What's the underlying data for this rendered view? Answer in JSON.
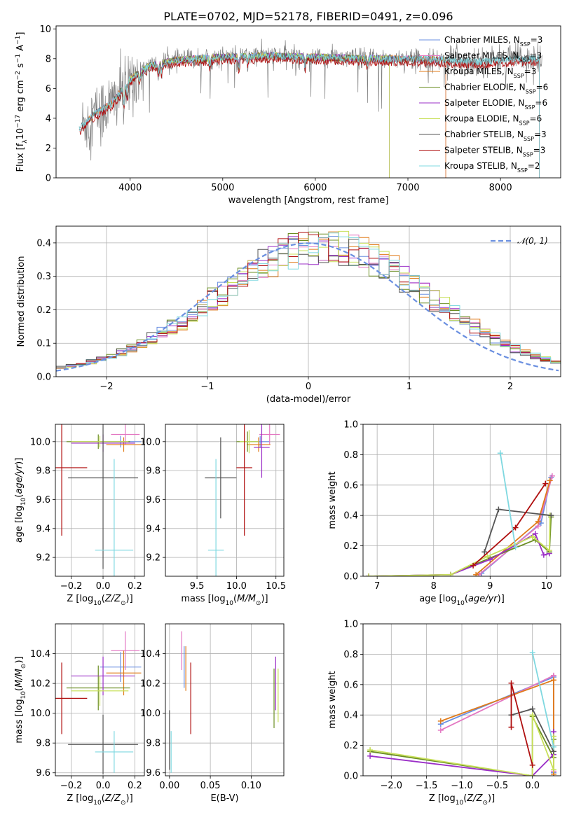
{
  "title": "PLATE=0702, MJD=52178, FIBERID=0491, z=0.096",
  "colors": {
    "chabrier_miles": "#6a8fe0",
    "salpeter_miles": "#e377c2",
    "kroupa_miles": "#e07b1a",
    "chabrier_elodie": "#6b8e23",
    "salpeter_elodie": "#9b2fc7",
    "kroupa_elodie": "#c8e05a",
    "chabrier_stelib": "#555555",
    "salpeter_stelib": "#b01010",
    "kroupa_stelib": "#7fd8e0",
    "gaussian": "#6a8fe0",
    "data_spectrum": "#808080"
  },
  "chart_data": [
    {
      "id": "spectrum",
      "type": "line",
      "xlabel": "wavelength [Angstrom, rest frame]",
      "ylabel": "Flux [f_λ10^-17 erg cm^-2 s^-1 A^-1]",
      "xlim": [
        3200,
        8650
      ],
      "ylim": [
        0,
        10.2
      ],
      "xticks": [
        4000,
        5000,
        6000,
        7000,
        8000
      ],
      "yticks": [
        0,
        2,
        4,
        6,
        8,
        10
      ],
      "legend": "top-right",
      "series": [
        {
          "name": "Chabrier MILES, N_SSP=3"
        },
        {
          "name": "Salpeter MILES, N_SSP=3"
        },
        {
          "name": "Kroupa MILES, N_SSP=3"
        },
        {
          "name": "Chabrier ELODIE, N_SSP=6"
        },
        {
          "name": "Salpeter ELODIE, N_SSP=6"
        },
        {
          "name": "Kroupa ELODIE, N_SSP=6"
        },
        {
          "name": "Chabrier STELIB, N_SSP=3"
        },
        {
          "name": "Salpeter STELIB, N_SSP=3"
        },
        {
          "name": "Kroupa STELIB, N_SSP=2"
        }
      ],
      "continuum": {
        "x": [
          3450,
          3600,
          3800,
          4000,
          4200,
          4500,
          5000,
          5500,
          6000,
          6500,
          7000,
          7400,
          7800,
          8200,
          8450
        ],
        "y": [
          3.3,
          4.2,
          5.0,
          6.6,
          7.5,
          7.9,
          8.1,
          8.2,
          8.1,
          8.0,
          8.0,
          7.9,
          7.8,
          8.0,
          8.0
        ]
      }
    },
    {
      "id": "residuals",
      "type": "line",
      "xlabel": "(data-model)/error",
      "ylabel": "Normed distribution",
      "xlim": [
        -2.5,
        2.5
      ],
      "ylim": [
        0,
        0.45
      ],
      "xticks": [
        -2,
        -1,
        0,
        1,
        2
      ],
      "yticks": [
        0.0,
        0.1,
        0.2,
        0.3,
        0.4
      ],
      "legend": "top-right",
      "gaussian_label": "𝒩(0, 1)"
    },
    {
      "id": "age_vs_Z",
      "type": "scatter",
      "xlabel": "Z [log10(Z/Z⊙)]",
      "ylabel": "age  [log10(age/yr)]",
      "xlim": [
        -0.3,
        0.26
      ],
      "ylim": [
        9.07,
        10.12
      ],
      "xticks": [
        -0.2,
        0.0,
        0.2
      ],
      "yticks": [
        9.2,
        9.4,
        9.6,
        9.8,
        10.0
      ],
      "points": [
        {
          "k": "chabrier_miles",
          "x": 0.11,
          "y": 10.0,
          "xe": 0.13,
          "ye": 0.04
        },
        {
          "k": "salpeter_miles",
          "x": 0.14,
          "y": 10.05,
          "xe": 0.09,
          "ye": 0.07
        },
        {
          "k": "kroupa_miles",
          "x": 0.13,
          "y": 9.98,
          "xe": 0.11,
          "ye": 0.05
        },
        {
          "k": "chabrier_elodie",
          "x": -0.03,
          "y": 10.0,
          "xe": 0.2,
          "ye": 0.05
        },
        {
          "k": "salpeter_elodie",
          "x": 0.0,
          "y": 9.99,
          "xe": 0.2,
          "ye": 0.06
        },
        {
          "k": "kroupa_elodie",
          "x": -0.02,
          "y": 10.0,
          "xe": 0.18,
          "ye": 0.04
        },
        {
          "k": "chabrier_stelib",
          "x": 0.0,
          "y": 9.75,
          "xe": 0.22,
          "ye": 0.63
        },
        {
          "k": "salpeter_stelib",
          "x": -0.26,
          "y": 9.82,
          "xe": 0.16,
          "ye": 0.47
        },
        {
          "k": "kroupa_stelib",
          "x": 0.07,
          "y": 9.25,
          "xe": 0.12,
          "ye": 0.63
        }
      ]
    },
    {
      "id": "age_vs_mass",
      "type": "scatter",
      "xlabel": "mass [log10(M/M⊙)]",
      "ylabel": "",
      "xlim": [
        9.1,
        10.6
      ],
      "ylim": [
        9.07,
        10.12
      ],
      "xticks": [
        9.5,
        10.0,
        10.5
      ],
      "yticks": [
        9.2,
        9.4,
        9.6,
        9.8,
        10.0
      ],
      "points": [
        {
          "k": "chabrier_miles",
          "x": 10.3,
          "y": 10.0,
          "xe": 0.12,
          "ye": 0.04
        },
        {
          "k": "salpeter_miles",
          "x": 10.42,
          "y": 10.05,
          "xe": 0.13,
          "ye": 0.07
        },
        {
          "k": "kroupa_miles",
          "x": 10.28,
          "y": 9.98,
          "xe": 0.15,
          "ye": 0.05
        },
        {
          "k": "chabrier_elodie",
          "x": 10.14,
          "y": 10.0,
          "xe": 0.14,
          "ye": 0.07
        },
        {
          "k": "salpeter_elodie",
          "x": 10.32,
          "y": 9.96,
          "xe": 0.1,
          "ye": 0.21
        },
        {
          "k": "kroupa_elodie",
          "x": 10.16,
          "y": 10.0,
          "xe": 0.12,
          "ye": 0.08
        },
        {
          "k": "chabrier_stelib",
          "x": 9.8,
          "y": 9.75,
          "xe": 0.2,
          "ye": 0.28
        },
        {
          "k": "salpeter_stelib",
          "x": 10.1,
          "y": 9.82,
          "xe": 0.1,
          "ye": 0.47
        },
        {
          "k": "kroupa_stelib",
          "x": 9.74,
          "y": 9.25,
          "xe": 0.1,
          "ye": 0.63
        }
      ]
    },
    {
      "id": "weight_vs_age",
      "type": "line",
      "xlabel": "age  [log10(age/yr)]",
      "ylabel": "mass weight",
      "xlim": [
        6.75,
        10.25
      ],
      "ylim": [
        0,
        1.0
      ],
      "xticks": [
        7,
        8,
        9,
        10
      ],
      "yticks": [
        0.0,
        0.2,
        0.4,
        0.6,
        0.8,
        1.0
      ],
      "series": [
        {
          "k": "chabrier_miles",
          "x": [
            8.85,
            9.9,
            10.08
          ],
          "y": [
            0.02,
            0.35,
            0.65
          ]
        },
        {
          "k": "salpeter_miles",
          "x": [
            8.8,
            9.85,
            10.1
          ],
          "y": [
            0.01,
            0.33,
            0.66
          ]
        },
        {
          "k": "kroupa_miles",
          "x": [
            8.75,
            9.85,
            10.06
          ],
          "y": [
            0.01,
            0.36,
            0.63
          ]
        },
        {
          "k": "chabrier_elodie",
          "x": [
            6.85,
            8.3,
            9.0,
            9.8,
            10.05,
            10.08
          ],
          "y": [
            0.0,
            0.01,
            0.12,
            0.24,
            0.16,
            0.39
          ]
        },
        {
          "k": "salpeter_elodie",
          "x": [
            6.85,
            8.3,
            9.0,
            9.8,
            9.95,
            10.05
          ],
          "y": [
            0.0,
            0.01,
            0.11,
            0.28,
            0.14,
            0.15
          ]
        },
        {
          "k": "kroupa_elodie",
          "x": [
            6.85,
            8.3,
            8.95,
            9.75,
            10.05,
            10.06
          ],
          "y": [
            0.0,
            0.01,
            0.13,
            0.26,
            0.17,
            0.4
          ]
        },
        {
          "k": "chabrier_stelib",
          "x": [
            8.9,
            9.15,
            10.08
          ],
          "y": [
            0.16,
            0.44,
            0.4
          ]
        },
        {
          "k": "salpeter_stelib",
          "x": [
            8.7,
            9.45,
            9.98
          ],
          "y": [
            0.07,
            0.32,
            0.61
          ]
        },
        {
          "k": "kroupa_stelib",
          "x": [
            9.18,
            9.45
          ],
          "y": [
            0.81,
            0.19
          ]
        }
      ]
    },
    {
      "id": "mass_vs_Z",
      "type": "scatter",
      "xlabel": "Z [log10(Z/Z⊙)]",
      "ylabel": "mass [log10(M/M⊙)]",
      "xlim": [
        -0.3,
        0.26
      ],
      "ylim": [
        9.58,
        10.6
      ],
      "xticks": [
        -0.2,
        0.0,
        0.2
      ],
      "yticks": [
        9.6,
        9.8,
        10.0,
        10.2,
        10.4
      ],
      "points": [
        {
          "k": "chabrier_miles",
          "x": 0.11,
          "y": 10.31,
          "xe": 0.13,
          "ye": 0.1
        },
        {
          "k": "salpeter_miles",
          "x": 0.14,
          "y": 10.42,
          "xe": 0.09,
          "ye": 0.13
        },
        {
          "k": "kroupa_miles",
          "x": 0.13,
          "y": 10.27,
          "xe": 0.11,
          "ye": 0.15
        },
        {
          "k": "chabrier_elodie",
          "x": -0.03,
          "y": 10.17,
          "xe": 0.2,
          "ye": 0.15
        },
        {
          "k": "salpeter_elodie",
          "x": 0.0,
          "y": 10.25,
          "xe": 0.2,
          "ye": 0.13
        },
        {
          "k": "kroupa_elodie",
          "x": -0.02,
          "y": 10.15,
          "xe": 0.18,
          "ye": 0.1
        },
        {
          "k": "chabrier_stelib",
          "x": 0.0,
          "y": 9.79,
          "xe": 0.22,
          "ye": 0.2
        },
        {
          "k": "salpeter_stelib",
          "x": -0.26,
          "y": 10.1,
          "xe": 0.16,
          "ye": 0.24
        },
        {
          "k": "kroupa_stelib",
          "x": 0.07,
          "y": 9.74,
          "xe": 0.12,
          "ye": 0.14
        }
      ]
    },
    {
      "id": "mass_vs_EBV",
      "type": "scatter",
      "xlabel": "E(B-V)",
      "ylabel": "",
      "xlim": [
        -0.005,
        0.14
      ],
      "ylim": [
        9.58,
        10.6
      ],
      "xticks": [
        0.0,
        0.05,
        0.1
      ],
      "yticks": [
        9.6,
        9.8,
        10.0,
        10.2,
        10.4
      ],
      "points": [
        {
          "k": "chabrier_miles",
          "x": 0.018,
          "y": 10.31,
          "xe": 0,
          "ye": 0.14
        },
        {
          "k": "salpeter_miles",
          "x": 0.015,
          "y": 10.42,
          "xe": 0,
          "ye": 0.13
        },
        {
          "k": "kroupa_miles",
          "x": 0.02,
          "y": 10.3,
          "xe": 0,
          "ye": 0.15
        },
        {
          "k": "chabrier_elodie",
          "x": 0.128,
          "y": 10.1,
          "xe": 0,
          "ye": 0.2
        },
        {
          "k": "salpeter_elodie",
          "x": 0.13,
          "y": 10.2,
          "xe": 0,
          "ye": 0.18
        },
        {
          "k": "kroupa_elodie",
          "x": 0.133,
          "y": 10.12,
          "xe": 0,
          "ye": 0.18
        },
        {
          "k": "chabrier_stelib",
          "x": 0.0,
          "y": 9.82,
          "xe": 0,
          "ye": 0.2
        },
        {
          "k": "salpeter_stelib",
          "x": 0.026,
          "y": 10.1,
          "xe": 0,
          "ye": 0.24
        },
        {
          "k": "kroupa_stelib",
          "x": 0.002,
          "y": 9.74,
          "xe": 0,
          "ye": 0.14
        }
      ]
    },
    {
      "id": "weight_vs_Z",
      "type": "line",
      "xlabel": "Z [log10(Z/Z⊙)]",
      "ylabel": "mass weight",
      "xlim": [
        -2.4,
        0.4
      ],
      "ylim": [
        0,
        1.0
      ],
      "xticks": [
        -2.0,
        -1.5,
        -1.0,
        -0.5,
        0.0
      ],
      "yticks": [
        0.0,
        0.2,
        0.4,
        0.6,
        0.8,
        1.0
      ],
      "series": [
        {
          "k": "chabrier_miles",
          "x": [
            -1.3,
            0.3,
            0.3
          ],
          "y": [
            0.34,
            0.65,
            0.02
          ]
        },
        {
          "k": "salpeter_miles",
          "x": [
            -1.3,
            0.3,
            0.3
          ],
          "y": [
            0.3,
            0.66,
            0.03
          ]
        },
        {
          "k": "kroupa_miles",
          "x": [
            -1.3,
            0.3,
            0.3
          ],
          "y": [
            0.36,
            0.63,
            0.01
          ]
        },
        {
          "k": "chabrier_elodie",
          "x": [
            -2.3,
            0.0,
            0.0,
            0.3,
            0.3
          ],
          "y": [
            0.16,
            0.0,
            0.39,
            0.12,
            0.24
          ]
        },
        {
          "k": "salpeter_elodie",
          "x": [
            -2.3,
            0.0,
            0.3,
            0.3
          ],
          "y": [
            0.13,
            0.0,
            0.14,
            0.29
          ]
        },
        {
          "k": "kroupa_elodie",
          "x": [
            -2.3,
            0.0,
            0.0,
            0.3,
            0.3
          ],
          "y": [
            0.17,
            0.0,
            0.4,
            0.04,
            0.26
          ]
        },
        {
          "k": "chabrier_stelib",
          "x": [
            -0.3,
            0.0,
            0.3
          ],
          "y": [
            0.4,
            0.44,
            0.16
          ]
        },
        {
          "k": "salpeter_stelib",
          "x": [
            -0.3,
            -0.3,
            0.0
          ],
          "y": [
            0.32,
            0.61,
            0.07
          ]
        },
        {
          "k": "kroupa_stelib",
          "x": [
            0.0,
            0.3
          ],
          "y": [
            0.81,
            0.19
          ]
        }
      ]
    }
  ]
}
